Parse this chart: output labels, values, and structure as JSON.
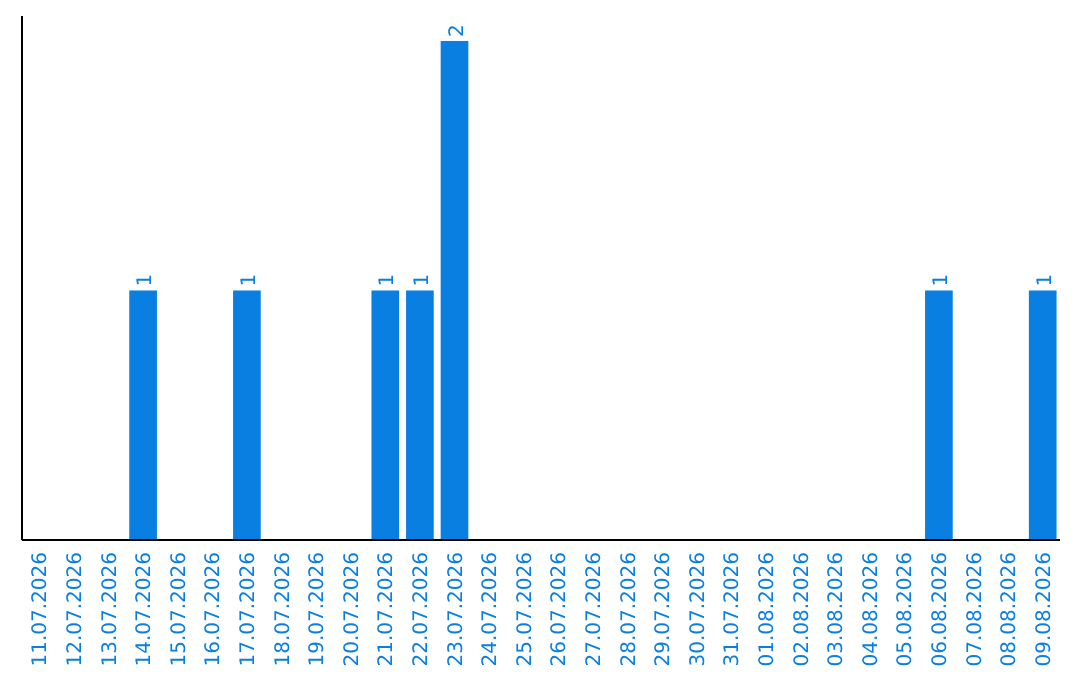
{
  "chart_data": {
    "type": "bar",
    "categories": [
      "11.07.2026",
      "12.07.2026",
      "13.07.2026",
      "14.07.2026",
      "15.07.2026",
      "16.07.2026",
      "17.07.2026",
      "18.07.2026",
      "19.07.2026",
      "20.07.2026",
      "21.07.2026",
      "22.07.2026",
      "23.07.2026",
      "24.07.2026",
      "25.07.2026",
      "26.07.2026",
      "27.07.2026",
      "28.07.2026",
      "29.07.2026",
      "30.07.2026",
      "31.07.2026",
      "01.08.2026",
      "02.08.2026",
      "03.08.2026",
      "04.08.2026",
      "05.08.2026",
      "06.08.2026",
      "07.08.2026",
      "08.08.2026",
      "09.08.2026"
    ],
    "values": [
      0,
      0,
      0,
      1,
      0,
      0,
      1,
      0,
      0,
      0,
      1,
      1,
      2,
      0,
      0,
      0,
      0,
      0,
      0,
      0,
      0,
      0,
      0,
      0,
      0,
      0,
      1,
      0,
      0,
      1
    ],
    "value_labels": [
      null,
      null,
      null,
      "1",
      null,
      null,
      "1",
      null,
      null,
      null,
      "1",
      "1",
      "2",
      null,
      null,
      null,
      null,
      null,
      null,
      null,
      null,
      null,
      null,
      null,
      null,
      null,
      "1",
      null,
      null,
      "1"
    ],
    "color": "#0a7fe2",
    "ylim": [
      0,
      2.1
    ],
    "tick_labels": "x"
  }
}
